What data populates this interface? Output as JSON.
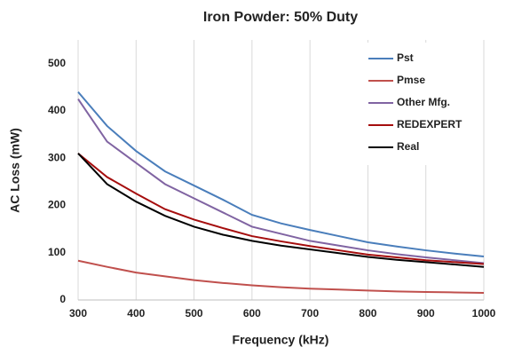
{
  "chart_data": {
    "type": "line",
    "title": "Iron Powder: 50% Duty",
    "x_label": "Frequency (kHz)",
    "y_label": "AC Loss (mW)",
    "x": [
      300,
      350,
      400,
      450,
      500,
      550,
      600,
      650,
      700,
      750,
      800,
      850,
      900,
      950,
      1000
    ],
    "series": [
      {
        "name": "Pst",
        "color": "#4a7ebb",
        "values": [
          440,
          368,
          315,
          272,
          242,
          212,
          180,
          162,
          148,
          135,
          122,
          113,
          105,
          98,
          92
        ]
      },
      {
        "name": "Pmse",
        "color": "#c0504d",
        "values": [
          83,
          70,
          58,
          50,
          42,
          36,
          31,
          27,
          24,
          22,
          20,
          18,
          17,
          16,
          15
        ]
      },
      {
        "name": "Other Mfg.",
        "color": "#8064a2",
        "values": [
          425,
          335,
          290,
          245,
          215,
          185,
          155,
          140,
          125,
          115,
          105,
          97,
          90,
          84,
          78
        ]
      },
      {
        "name": "REDEXPERT",
        "color": "#a50d0d",
        "values": [
          310,
          260,
          225,
          192,
          170,
          152,
          135,
          124,
          114,
          105,
          96,
          90,
          84,
          80,
          76
        ]
      },
      {
        "name": "Real",
        "color": "#000000",
        "values": [
          310,
          245,
          208,
          178,
          155,
          138,
          125,
          115,
          107,
          99,
          91,
          85,
          80,
          75,
          70
        ]
      }
    ],
    "xlim": [
      300,
      1000
    ],
    "xticks": [
      300,
      400,
      500,
      600,
      700,
      800,
      900,
      1000
    ],
    "ylim": [
      0,
      550
    ],
    "yticks": [
      0,
      100,
      200,
      300,
      400,
      500
    ],
    "grid": "x",
    "legend": "upper right"
  }
}
